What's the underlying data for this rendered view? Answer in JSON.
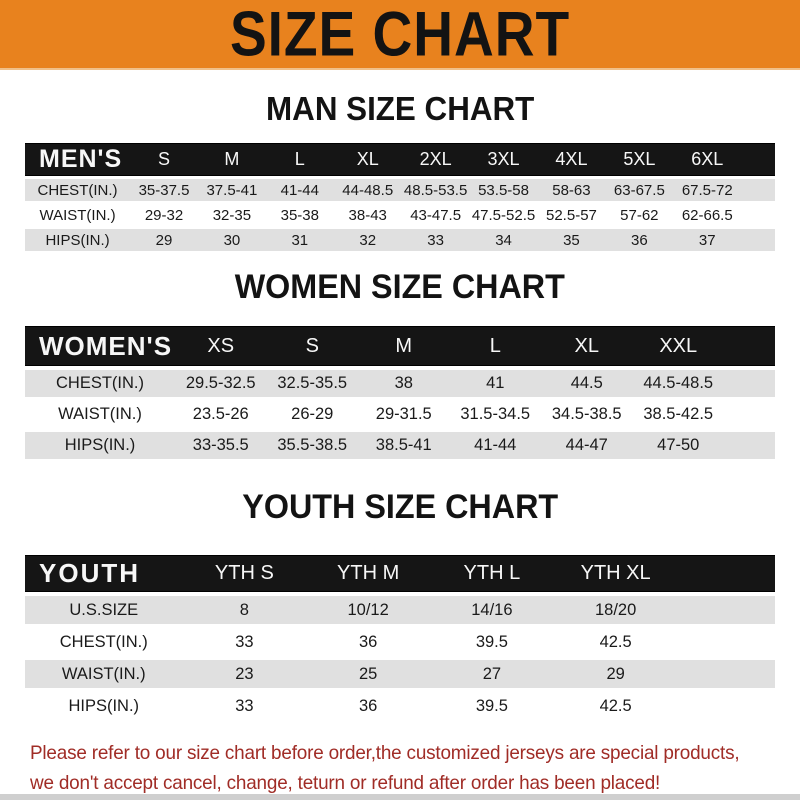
{
  "colors": {
    "banner_bg": "#E8821E",
    "header_bar": "#151515",
    "shaded_row": "#E0E0E0",
    "note_text": "#A02C26"
  },
  "banner": {
    "title": "SIZE CHART"
  },
  "men": {
    "title": "MAN SIZE CHART",
    "header": [
      "MEN'S",
      "S",
      "M",
      "L",
      "XL",
      "2XL",
      "3XL",
      "4XL",
      "5XL",
      "6XL"
    ],
    "rows": [
      [
        "CHEST(IN.)",
        "35-37.5",
        "37.5-41",
        "41-44",
        "44-48.5",
        "48.5-53.5",
        "53.5-58",
        "58-63",
        "63-67.5",
        "67.5-72"
      ],
      [
        "WAIST(IN.)",
        "29-32",
        "32-35",
        "35-38",
        "38-43",
        "43-47.5",
        "47.5-52.5",
        "52.5-57",
        "57-62",
        "62-66.5"
      ],
      [
        "HIPS(IN.)",
        "29",
        "30",
        "31",
        "32",
        "33",
        "34",
        "35",
        "36",
        "37"
      ]
    ]
  },
  "women": {
    "title": "WOMEN SIZE CHART",
    "header": [
      "WOMEN'S",
      "XS",
      "S",
      "M",
      "L",
      "XL",
      "XXL"
    ],
    "rows": [
      [
        "CHEST(IN.)",
        "29.5-32.5",
        "32.5-35.5",
        "38",
        "41",
        "44.5",
        "44.5-48.5"
      ],
      [
        "WAIST(IN.)",
        "23.5-26",
        "26-29",
        "29-31.5",
        "31.5-34.5",
        "34.5-38.5",
        "38.5-42.5"
      ],
      [
        "HIPS(IN.)",
        "33-35.5",
        "35.5-38.5",
        "38.5-41",
        "41-44",
        "44-47",
        "47-50"
      ]
    ]
  },
  "youth": {
    "title": "YOUTH SIZE CHART",
    "header": [
      "YOUTH",
      "YTH S",
      "YTH M",
      "YTH L",
      "YTH XL"
    ],
    "rows": [
      [
        "U.S.SIZE",
        "8",
        "10/12",
        "14/16",
        "18/20"
      ],
      [
        "CHEST(IN.)",
        "33",
        "36",
        "39.5",
        "42.5"
      ],
      [
        "WAIST(IN.)",
        "23",
        "25",
        "27",
        "29"
      ],
      [
        "HIPS(IN.)",
        "33",
        "36",
        "39.5",
        "42.5"
      ]
    ]
  },
  "note": {
    "lines": [
      "Please refer to our size chart before order,the customized jerseys are special products,",
      "we don't accept cancel, change, teturn or refund after order has been placed!"
    ]
  }
}
